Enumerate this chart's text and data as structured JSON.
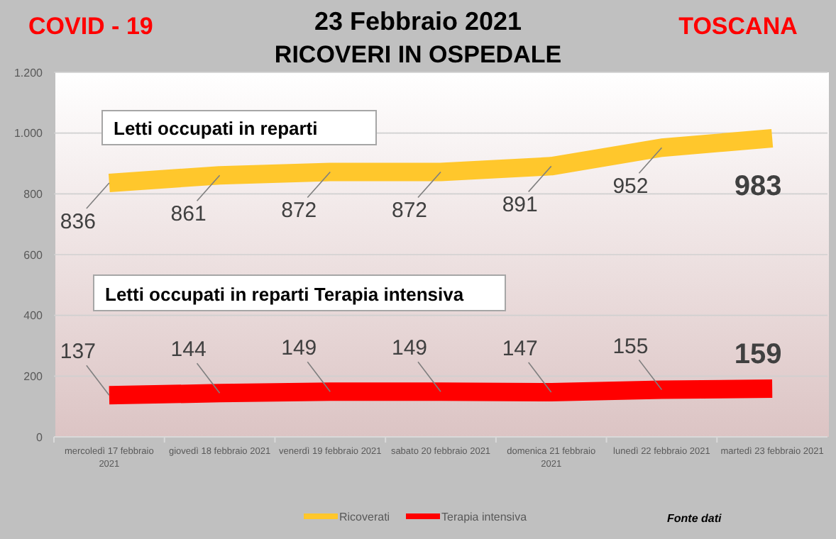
{
  "chart_data": {
    "type": "line",
    "title": "23 Febbraio 2021",
    "subtitle": "RICOVERI IN OSPEDALE",
    "categories": [
      "mercoledì 17 febbraio 2021",
      "giovedì 18 febbraio 2021",
      "venerdì 19 febbraio 2021",
      "sabato 20 febbraio 2021",
      "domenica 21 febbraio 2021",
      "lunedì 22 febbraio 2021",
      "martedì 23 febbraio 2021"
    ],
    "series": [
      {
        "name": "Ricoverati",
        "color": "#ffc72c",
        "values": [
          836,
          861,
          872,
          872,
          891,
          952,
          983
        ]
      },
      {
        "name": "Terapia intensiva",
        "color": "#ff0000",
        "values": [
          137,
          144,
          149,
          149,
          147,
          155,
          159
        ]
      }
    ],
    "ylim": [
      0,
      1200
    ],
    "yticks": [
      0,
      200,
      400,
      600,
      800,
      {
        "value": 1000,
        "label": "1.000"
      },
      {
        "value": 1200,
        "label": "1.200"
      }
    ],
    "grid": "y",
    "legend": "bottom",
    "data_labels": true,
    "line_style": "solid",
    "annotations": [
      "COVID - 19",
      "TOSCANA",
      "Letti occupati in reparti",
      "Letti occupati in reparti Terapia intensiva",
      "Fonte dati"
    ]
  }
}
